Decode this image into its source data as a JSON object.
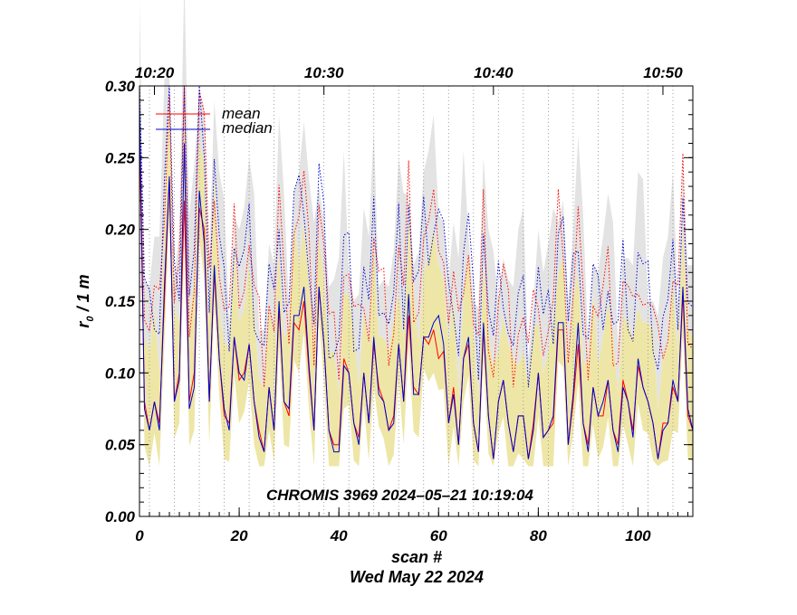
{
  "chart_data": {
    "type": "line",
    "title": "",
    "xlabel": "scan #",
    "ylabel_main": "r",
    "ylabel_sub": "0",
    "ylabel_rest": " / 1 m",
    "date_label": "Wed May 22 2024",
    "annotation": "CHROMIS 3969 2024–05–21 10:19:04",
    "xlim": [
      0,
      111
    ],
    "ylim": [
      0,
      0.3
    ],
    "xticks": [
      0,
      20,
      40,
      60,
      80,
      100
    ],
    "yticks": [
      0.0,
      0.05,
      0.1,
      0.15,
      0.2,
      0.25,
      0.3
    ],
    "ytick_labels": [
      "0.00",
      "0.05",
      "0.10",
      "0.15",
      "0.20",
      "0.25",
      "0.30"
    ],
    "top_axis": {
      "ticks": [
        {
          "x": 3,
          "label": "10:20"
        },
        {
          "x": 37,
          "label": "10:30"
        },
        {
          "x": 71,
          "label": "10:40"
        },
        {
          "x": 105,
          "label": "10:50"
        }
      ]
    },
    "legend": [
      {
        "name": "mean",
        "color": "#ff0000"
      },
      {
        "name": "median",
        "color": "#0000cc"
      }
    ],
    "colors": {
      "mean": "#ff0000",
      "median": "#0000cc",
      "band_yellow": "#eee6a6",
      "band_grey": "#e3e3e3"
    },
    "x": [
      0,
      1,
      2,
      3,
      4,
      5,
      6,
      7,
      8,
      9,
      10,
      11,
      12,
      13,
      14,
      15,
      16,
      17,
      18,
      19,
      20,
      21,
      22,
      23,
      24,
      25,
      26,
      27,
      28,
      29,
      30,
      31,
      32,
      33,
      34,
      35,
      36,
      37,
      38,
      39,
      40,
      41,
      42,
      43,
      44,
      45,
      46,
      47,
      48,
      49,
      50,
      51,
      52,
      53,
      54,
      55,
      56,
      57,
      58,
      59,
      60,
      61,
      62,
      63,
      64,
      65,
      66,
      67,
      68,
      69,
      70,
      71,
      72,
      73,
      74,
      75,
      76,
      77,
      78,
      79,
      80,
      81,
      82,
      83,
      84,
      85,
      86,
      87,
      88,
      89,
      90,
      91,
      92,
      93,
      94,
      95,
      96,
      97,
      98,
      99,
      100,
      101,
      102,
      103,
      104,
      105,
      106,
      107,
      108,
      109,
      110,
      111
    ],
    "series": [
      {
        "name": "mean",
        "values": [
          0.27,
          0.08,
          0.06,
          0.08,
          0.065,
          0.15,
          0.235,
          0.08,
          0.1,
          0.22,
          0.08,
          0.1,
          0.215,
          0.2,
          0.08,
          0.17,
          0.11,
          0.07,
          0.065,
          0.125,
          0.095,
          0.1,
          0.12,
          0.08,
          0.06,
          0.045,
          0.09,
          0.06,
          0.145,
          0.08,
          0.07,
          0.135,
          0.13,
          0.15,
          0.1,
          0.06,
          0.16,
          0.12,
          0.06,
          0.05,
          0.05,
          0.11,
          0.1,
          0.065,
          0.055,
          0.1,
          0.065,
          0.12,
          0.09,
          0.08,
          0.06,
          0.07,
          0.12,
          0.08,
          0.14,
          0.09,
          0.085,
          0.125,
          0.12,
          0.13,
          0.11,
          0.115,
          0.065,
          0.09,
          0.05,
          0.11,
          0.12,
          0.065,
          0.045,
          0.13,
          0.07,
          0.04,
          0.08,
          0.095,
          0.065,
          0.045,
          0.07,
          0.07,
          0.04,
          0.065,
          0.1,
          0.055,
          0.06,
          0.065,
          0.13,
          0.13,
          0.05,
          0.08,
          0.12,
          0.065,
          0.05,
          0.09,
          0.07,
          0.07,
          0.095,
          0.06,
          0.05,
          0.095,
          0.08,
          0.06,
          0.105,
          0.09,
          0.08,
          0.065,
          0.04,
          0.065,
          0.065,
          0.09,
          0.08,
          0.155,
          0.07,
          0.06
        ]
      },
      {
        "name": "median",
        "values": [
          0.29,
          0.075,
          0.06,
          0.08,
          0.06,
          0.16,
          0.237,
          0.08,
          0.095,
          0.26,
          0.075,
          0.09,
          0.227,
          0.19,
          0.08,
          0.175,
          0.11,
          0.075,
          0.06,
          0.125,
          0.1,
          0.095,
          0.12,
          0.08,
          0.055,
          0.045,
          0.09,
          0.06,
          0.15,
          0.08,
          0.075,
          0.14,
          0.14,
          0.16,
          0.105,
          0.06,
          0.16,
          0.12,
          0.06,
          0.045,
          0.045,
          0.105,
          0.1,
          0.065,
          0.05,
          0.1,
          0.065,
          0.125,
          0.085,
          0.08,
          0.06,
          0.065,
          0.12,
          0.08,
          0.155,
          0.085,
          0.085,
          0.125,
          0.125,
          0.135,
          0.14,
          0.12,
          0.065,
          0.085,
          0.05,
          0.11,
          0.125,
          0.065,
          0.045,
          0.135,
          0.07,
          0.04,
          0.08,
          0.095,
          0.065,
          0.045,
          0.07,
          0.07,
          0.04,
          0.06,
          0.1,
          0.055,
          0.06,
          0.07,
          0.135,
          0.135,
          0.05,
          0.085,
          0.135,
          0.065,
          0.045,
          0.09,
          0.07,
          0.08,
          0.095,
          0.06,
          0.045,
          0.09,
          0.08,
          0.055,
          0.11,
          0.09,
          0.08,
          0.065,
          0.04,
          0.06,
          0.065,
          0.095,
          0.08,
          0.16,
          0.075,
          0.06
        ]
      }
    ]
  }
}
